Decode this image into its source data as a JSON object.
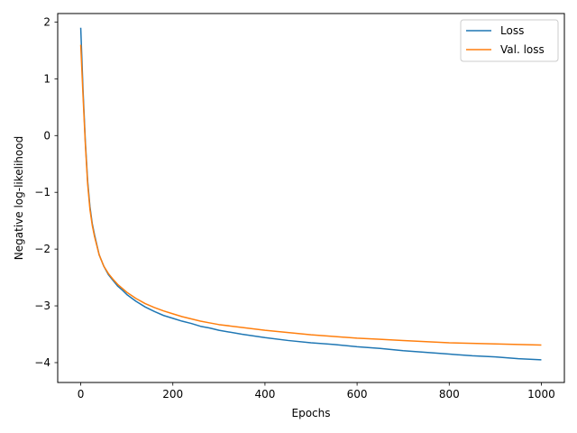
{
  "chart_data": {
    "type": "line",
    "title": "",
    "xlabel": "Epochs",
    "ylabel": "Negative log-likelihood",
    "xlim": [
      -50,
      1050
    ],
    "ylim": [
      -4.35,
      2.15
    ],
    "xticks": [
      0,
      200,
      400,
      600,
      800,
      1000
    ],
    "xtick_labels": [
      "0",
      "200",
      "400",
      "600",
      "800",
      "1000"
    ],
    "yticks": [
      -4,
      -3,
      -2,
      -1,
      0,
      1,
      2
    ],
    "ytick_labels": [
      "−4",
      "−3",
      "−2",
      "−1",
      "0",
      "1",
      "2"
    ],
    "grid": false,
    "legend": {
      "placement": "top-right"
    },
    "colors": {
      "loss": "#1f77b4",
      "val_loss": "#ff7f0e"
    },
    "series": [
      {
        "name": "Loss",
        "color": "#1f77b4",
        "x": [
          0,
          5,
          10,
          15,
          20,
          25,
          30,
          40,
          50,
          60,
          70,
          80,
          90,
          100,
          120,
          140,
          160,
          180,
          200,
          220,
          240,
          260,
          280,
          300,
          350,
          400,
          450,
          500,
          550,
          600,
          650,
          700,
          750,
          800,
          850,
          900,
          950,
          1000
        ],
        "y": [
          1.9,
          0.8,
          -0.1,
          -0.8,
          -1.25,
          -1.55,
          -1.75,
          -2.1,
          -2.3,
          -2.45,
          -2.55,
          -2.65,
          -2.72,
          -2.8,
          -2.92,
          -3.02,
          -3.1,
          -3.17,
          -3.22,
          -3.27,
          -3.31,
          -3.36,
          -3.39,
          -3.43,
          -3.5,
          -3.56,
          -3.61,
          -3.65,
          -3.68,
          -3.72,
          -3.75,
          -3.79,
          -3.82,
          -3.85,
          -3.88,
          -3.9,
          -3.93,
          -3.95
        ]
      },
      {
        "name": "Val. loss",
        "color": "#ff7f0e",
        "x": [
          0,
          5,
          10,
          15,
          20,
          25,
          30,
          40,
          50,
          60,
          70,
          80,
          90,
          100,
          120,
          140,
          160,
          180,
          200,
          220,
          240,
          260,
          280,
          300,
          350,
          400,
          450,
          500,
          550,
          600,
          650,
          700,
          750,
          800,
          850,
          900,
          950,
          1000
        ],
        "y": [
          1.6,
          0.7,
          -0.15,
          -0.85,
          -1.3,
          -1.58,
          -1.78,
          -2.1,
          -2.3,
          -2.43,
          -2.53,
          -2.62,
          -2.69,
          -2.76,
          -2.87,
          -2.96,
          -3.03,
          -3.09,
          -3.14,
          -3.19,
          -3.23,
          -3.27,
          -3.3,
          -3.33,
          -3.38,
          -3.43,
          -3.47,
          -3.51,
          -3.54,
          -3.57,
          -3.59,
          -3.61,
          -3.63,
          -3.65,
          -3.66,
          -3.67,
          -3.68,
          -3.69
        ]
      }
    ]
  }
}
